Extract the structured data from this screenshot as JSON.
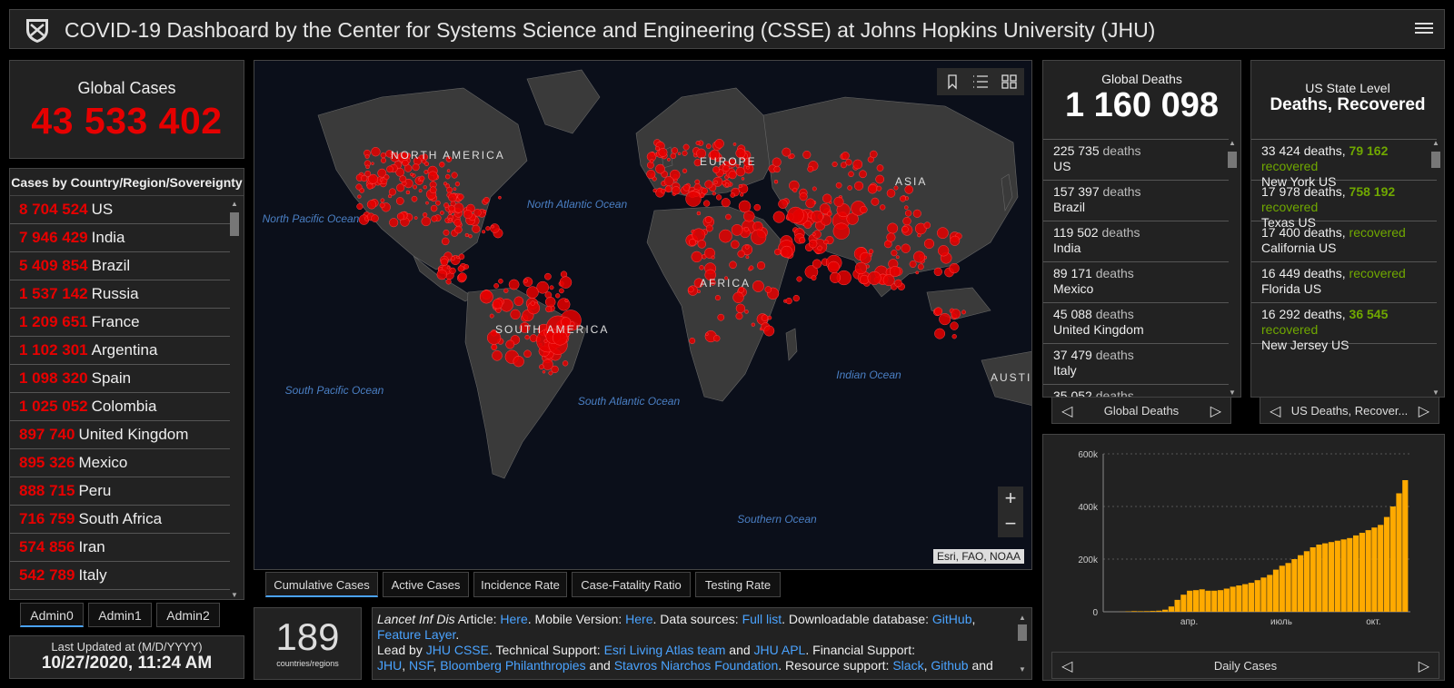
{
  "header": {
    "title": "COVID-19 Dashboard by the Center for Systems Science and Engineering (CSSE) at Johns Hopkins University (JHU)",
    "logo_icon": "jhu-shield-icon",
    "menu_icon": "hamburger-menu-icon"
  },
  "global_cases": {
    "label": "Global Cases",
    "value": "43 533 402"
  },
  "country_list": {
    "heading": "Cases by Country/Region/Sovereignty",
    "items": [
      {
        "value": "8 704 524",
        "name": "US"
      },
      {
        "value": "7 946 429",
        "name": "India"
      },
      {
        "value": "5 409 854",
        "name": "Brazil"
      },
      {
        "value": "1 537 142",
        "name": "Russia"
      },
      {
        "value": "1 209 651",
        "name": "France"
      },
      {
        "value": "1 102 301",
        "name": "Argentina"
      },
      {
        "value": "1 098 320",
        "name": "Spain"
      },
      {
        "value": "1 025 052",
        "name": "Colombia"
      },
      {
        "value": "897 740",
        "name": "United Kingdom"
      },
      {
        "value": "895 326",
        "name": "Mexico"
      },
      {
        "value": "888 715",
        "name": "Peru"
      },
      {
        "value": "716 759",
        "name": "South Africa"
      },
      {
        "value": "574 856",
        "name": "Iran"
      },
      {
        "value": "542 789",
        "name": "Italy"
      }
    ]
  },
  "admin_tabs": [
    "Admin0",
    "Admin1",
    "Admin2"
  ],
  "last_updated": {
    "label": "Last Updated at (M/D/YYYY)",
    "value": "10/27/2020, 11:24 AM"
  },
  "map": {
    "labels": {
      "north_america": "NORTH AMERICA",
      "south_america": "SOUTH AMERICA",
      "europe": "EUROPE",
      "africa": "AFRICA",
      "asia": "ASIA",
      "australia": "AUSTI",
      "north_pacific": "North Pacific Ocean",
      "north_atlantic": "North Atlantic Ocean",
      "south_pacific": "South Pacific Ocean",
      "south_atlantic": "South Atlantic Ocean",
      "indian": "Indian Ocean",
      "southern": "Southern Ocean"
    },
    "attribution": "Esri, FAO, NOAA",
    "zoom_in": "+",
    "zoom_out": "−"
  },
  "map_tabs": [
    "Cumulative Cases",
    "Active Cases",
    "Incidence Rate",
    "Case-Fatality Ratio",
    "Testing Rate"
  ],
  "countries_count": {
    "value": "189",
    "label": "countries/regions"
  },
  "info_text": {
    "journal": "Lancet Inf Dis",
    "article": " Article: ",
    "here1": "Here",
    "mobile": ". Mobile Version: ",
    "here2": "Here",
    "sources": ". Data sources: ",
    "full_list": "Full list",
    "db": ". Downloadable database: ",
    "github": "GitHub",
    "comma": ", ",
    "feature_layer": "Feature Layer",
    "lead": ".\nLead by ",
    "jhu_csse": "JHU CSSE",
    "tech": ". Technical Support: ",
    "esri": "Esri Living Atlas team",
    "and1": " and ",
    "jhu_apl": "JHU APL",
    "fin": ". Financial Support: ",
    "jhu": "JHU",
    "nsf": "NSF",
    "bloomberg": "Bloomberg Philanthropies",
    "and2": " and ",
    "snf": "Stavros Niarchos Foundation",
    "res": ". Resource support: ",
    "slack": "Slack",
    "github2": "Github",
    "and3": " and "
  },
  "global_deaths": {
    "label": "Global Deaths",
    "value": "1 160 098",
    "items": [
      {
        "value": "225 735",
        "unit": "deaths",
        "name": "US"
      },
      {
        "value": "157 397",
        "unit": "deaths",
        "name": "Brazil"
      },
      {
        "value": "119 502",
        "unit": "deaths",
        "name": "India"
      },
      {
        "value": "89 171",
        "unit": "deaths",
        "name": "Mexico"
      },
      {
        "value": "45 088",
        "unit": "deaths",
        "name": "United Kingdom"
      },
      {
        "value": "37 479",
        "unit": "deaths",
        "name": "Italy"
      },
      {
        "value": "35 052",
        "unit": "deaths",
        "name": ""
      }
    ],
    "pager_label": "Global Deaths"
  },
  "us_states": {
    "label": "US State Level",
    "sub": "Deaths, Recovered",
    "items": [
      {
        "deaths": "33 424 deaths, ",
        "recovered_value": "79 162",
        "recovered": "recovered",
        "name": "New York US"
      },
      {
        "deaths": "17 978 deaths, ",
        "recovered_value": "758 192",
        "recovered": "recovered",
        "name": "Texas US"
      },
      {
        "deaths": "17 400 deaths, ",
        "recovered_value": "",
        "recovered": "recovered",
        "name": "California US"
      },
      {
        "deaths": "16 449 deaths, ",
        "recovered_value": "",
        "recovered": "recovered",
        "name": "Florida US"
      },
      {
        "deaths": "16 292 deaths, ",
        "recovered_value": "36 545",
        "recovered": "recovered",
        "name": "New Jersey US"
      }
    ],
    "pager_label": "US Deaths, Recover..."
  },
  "chart_data": {
    "type": "bar",
    "title": "",
    "pager_label": "Daily Cases",
    "color": "#ffaa00",
    "ylim": [
      0,
      600000
    ],
    "yticks": [
      "0",
      "200k",
      "400k",
      "600k"
    ],
    "xticks": [
      "апр.",
      "июль",
      "окт."
    ],
    "x_start": "2020-01-22",
    "x_end": "2020-10-26",
    "values_weekly": [
      0,
      0,
      500,
      1500,
      2500,
      2000,
      2500,
      3000,
      4000,
      8000,
      20000,
      45000,
      65000,
      80000,
      82000,
      85000,
      80000,
      80000,
      82000,
      88000,
      95000,
      100000,
      105000,
      110000,
      120000,
      130000,
      140000,
      160000,
      175000,
      185000,
      200000,
      215000,
      230000,
      245000,
      255000,
      260000,
      265000,
      270000,
      275000,
      280000,
      290000,
      300000,
      310000,
      320000,
      330000,
      360000,
      400000,
      450000,
      500000
    ]
  }
}
